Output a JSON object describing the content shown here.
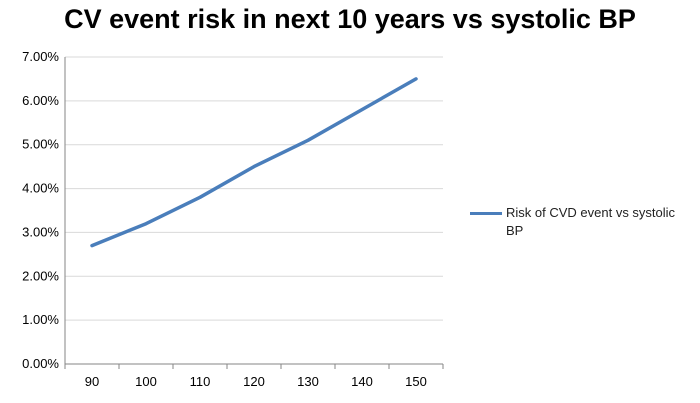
{
  "chart_data": {
    "type": "line",
    "title": "CV event risk in next 10 years vs systolic BP",
    "xlabel": "",
    "ylabel": "",
    "x": [
      90,
      100,
      110,
      120,
      130,
      140,
      150
    ],
    "series": [
      {
        "name": "Risk of CVD event vs systolic BP",
        "values": [
          2.7,
          3.2,
          3.8,
          4.5,
          5.1,
          5.8,
          6.5
        ],
        "color": "#4a7ebb"
      }
    ],
    "y_tick_labels": [
      "0.00%",
      "1.00%",
      "2.00%",
      "3.00%",
      "4.00%",
      "5.00%",
      "6.00%",
      "7.00%"
    ],
    "x_tick_labels": [
      "90",
      "100",
      "110",
      "120",
      "130",
      "140",
      "150"
    ],
    "ylim": [
      0,
      7
    ],
    "grid": true,
    "legend_position": "right"
  }
}
